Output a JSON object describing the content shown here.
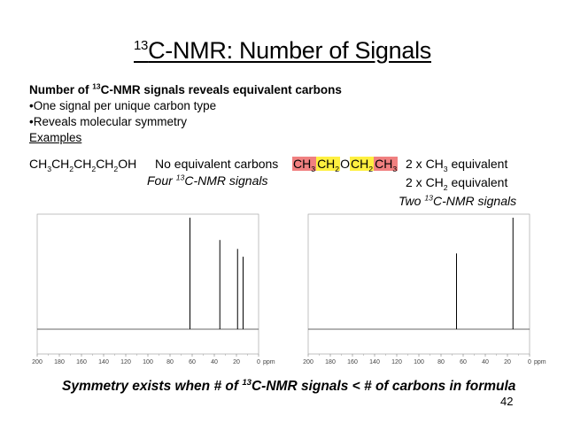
{
  "title": {
    "sup": "13",
    "text": "C-NMR: Number of Signals"
  },
  "subhead": {
    "pre": "Number of ",
    "sup": "13",
    "post": "C-NMR signals reveals equivalent carbons"
  },
  "bullets": [
    "One signal per unique carbon type",
    "Reveals molecular symmetry"
  ],
  "bullet_mark": "•",
  "examples_label": "Examples",
  "example1": {
    "formula": [
      "CH",
      "3",
      "CH",
      "2",
      "CH",
      "2",
      "CH",
      "2",
      "OH"
    ],
    "desc": "No equivalent carbons",
    "signals_pre": "Four ",
    "signals_sup": "13",
    "signals_post": "C-NMR signals"
  },
  "example2": {
    "formula": [
      {
        "base": "CH",
        "sub": "3",
        "hl": "red"
      },
      {
        "base": "CH",
        "sub": "2",
        "hl": "yellow"
      },
      {
        "base": "O",
        "sub": "",
        "hl": "none"
      },
      {
        "base": "CH",
        "sub": "2",
        "hl": "yellow"
      },
      {
        "base": "CH",
        "sub": "3",
        "hl": "red"
      }
    ],
    "eq1": {
      "pre": "2 x CH",
      "sub": "3",
      "post": " equivalent"
    },
    "eq2": {
      "pre": "2 x CH",
      "sub": "2",
      "post": " equivalent"
    },
    "signals_pre": "Two ",
    "signals_sup": "13",
    "signals_post": "C-NMR signals"
  },
  "spectrum1": {
    "ticks": [
      "200",
      "180",
      "160",
      "140",
      "120",
      "100",
      "80",
      "60",
      "40",
      "20",
      "0"
    ],
    "unit": "ppm",
    "peaks_ppm": [
      62,
      35,
      19,
      14
    ],
    "peak_heights": [
      1.0,
      0.8,
      0.72,
      0.65
    ]
  },
  "spectrum2": {
    "ticks": [
      "200",
      "180",
      "160",
      "140",
      "120",
      "100",
      "80",
      "60",
      "40",
      "20",
      "0"
    ],
    "unit": "ppm",
    "peaks_ppm": [
      66,
      15
    ],
    "peak_heights": [
      0.68,
      1.0
    ]
  },
  "footer": {
    "pre": "Symmetry exists when # of ",
    "sup": "13",
    "post": "C-NMR signals < # of carbons in formula"
  },
  "page_number": "42",
  "colors": {
    "highlight_red": "#f08080",
    "highlight_yellow": "#fff040"
  }
}
